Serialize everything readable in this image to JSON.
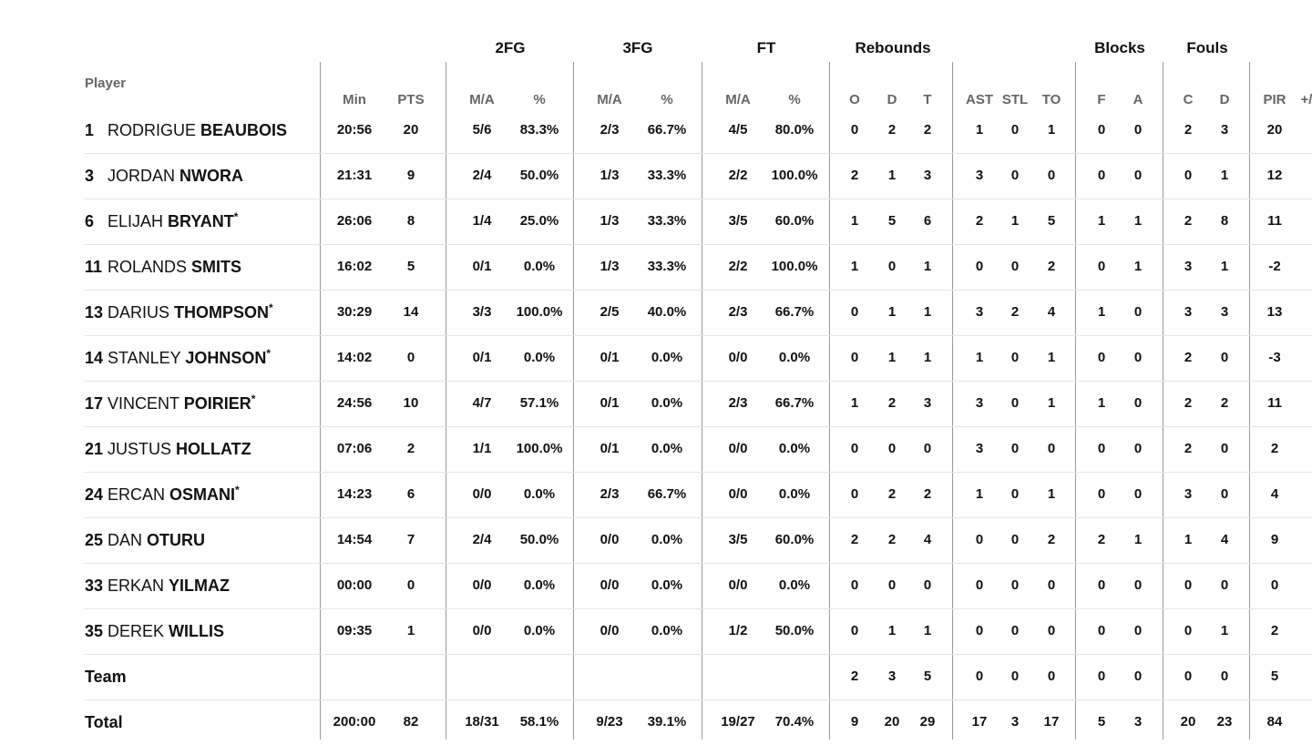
{
  "groups": {
    "fg2": "2FG",
    "fg3": "3FG",
    "ft": "FT",
    "reb": "Rebounds",
    "blk": "Blocks",
    "fls": "Fouls"
  },
  "headers": {
    "player": "Player",
    "min": "Min",
    "pts": "PTS",
    "fg2_ma": "M/A",
    "fg2_pct": "%",
    "fg3_ma": "M/A",
    "fg3_pct": "%",
    "ft_ma": "M/A",
    "ft_pct": "%",
    "reb_o": "O",
    "reb_d": "D",
    "reb_t": "T",
    "ast": "AST",
    "stl": "STL",
    "to": "TO",
    "blk_f": "F",
    "blk_a": "A",
    "fls_c": "C",
    "fls_d": "D",
    "pir": "PIR",
    "pm": "+/"
  },
  "players": [
    {
      "num": "1",
      "first": "RODRIGUE",
      "last": "BEAUBOIS",
      "star": "",
      "min": "20:56",
      "pts": "20",
      "fg2_ma": "5/6",
      "fg2_pct": "83.3%",
      "fg3_ma": "2/3",
      "fg3_pct": "66.7%",
      "ft_ma": "4/5",
      "ft_pct": "80.0%",
      "reb_o": "0",
      "reb_d": "2",
      "reb_t": "2",
      "ast": "1",
      "stl": "0",
      "to": "1",
      "blk_f": "0",
      "blk_a": "0",
      "fls_c": "2",
      "fls_d": "3",
      "pir": "20"
    },
    {
      "num": "3",
      "first": "JORDAN",
      "last": "NWORA",
      "star": "",
      "min": "21:31",
      "pts": "9",
      "fg2_ma": "2/4",
      "fg2_pct": "50.0%",
      "fg3_ma": "1/3",
      "fg3_pct": "33.3%",
      "ft_ma": "2/2",
      "ft_pct": "100.0%",
      "reb_o": "2",
      "reb_d": "1",
      "reb_t": "3",
      "ast": "3",
      "stl": "0",
      "to": "0",
      "blk_f": "0",
      "blk_a": "0",
      "fls_c": "0",
      "fls_d": "1",
      "pir": "12"
    },
    {
      "num": "6",
      "first": "ELIJAH",
      "last": "BRYANT",
      "star": "*",
      "min": "26:06",
      "pts": "8",
      "fg2_ma": "1/4",
      "fg2_pct": "25.0%",
      "fg3_ma": "1/3",
      "fg3_pct": "33.3%",
      "ft_ma": "3/5",
      "ft_pct": "60.0%",
      "reb_o": "1",
      "reb_d": "5",
      "reb_t": "6",
      "ast": "2",
      "stl": "1",
      "to": "5",
      "blk_f": "1",
      "blk_a": "1",
      "fls_c": "2",
      "fls_d": "8",
      "pir": "11"
    },
    {
      "num": "11",
      "first": "ROLANDS",
      "last": "SMITS",
      "star": "",
      "min": "16:02",
      "pts": "5",
      "fg2_ma": "0/1",
      "fg2_pct": "0.0%",
      "fg3_ma": "1/3",
      "fg3_pct": "33.3%",
      "ft_ma": "2/2",
      "ft_pct": "100.0%",
      "reb_o": "1",
      "reb_d": "0",
      "reb_t": "1",
      "ast": "0",
      "stl": "0",
      "to": "2",
      "blk_f": "0",
      "blk_a": "1",
      "fls_c": "3",
      "fls_d": "1",
      "pir": "-2"
    },
    {
      "num": "13",
      "first": "DARIUS",
      "last": "THOMPSON",
      "star": "*",
      "min": "30:29",
      "pts": "14",
      "fg2_ma": "3/3",
      "fg2_pct": "100.0%",
      "fg3_ma": "2/5",
      "fg3_pct": "40.0%",
      "ft_ma": "2/3",
      "ft_pct": "66.7%",
      "reb_o": "0",
      "reb_d": "1",
      "reb_t": "1",
      "ast": "3",
      "stl": "2",
      "to": "4",
      "blk_f": "1",
      "blk_a": "0",
      "fls_c": "3",
      "fls_d": "3",
      "pir": "13"
    },
    {
      "num": "14",
      "first": "STANLEY",
      "last": "JOHNSON",
      "star": "*",
      "min": "14:02",
      "pts": "0",
      "fg2_ma": "0/1",
      "fg2_pct": "0.0%",
      "fg3_ma": "0/1",
      "fg3_pct": "0.0%",
      "ft_ma": "0/0",
      "ft_pct": "0.0%",
      "reb_o": "0",
      "reb_d": "1",
      "reb_t": "1",
      "ast": "1",
      "stl": "0",
      "to": "1",
      "blk_f": "0",
      "blk_a": "0",
      "fls_c": "2",
      "fls_d": "0",
      "pir": "-3"
    },
    {
      "num": "17",
      "first": "VINCENT",
      "last": "POIRIER",
      "star": "*",
      "min": "24:56",
      "pts": "10",
      "fg2_ma": "4/7",
      "fg2_pct": "57.1%",
      "fg3_ma": "0/1",
      "fg3_pct": "0.0%",
      "ft_ma": "2/3",
      "ft_pct": "66.7%",
      "reb_o": "1",
      "reb_d": "2",
      "reb_t": "3",
      "ast": "3",
      "stl": "0",
      "to": "1",
      "blk_f": "1",
      "blk_a": "0",
      "fls_c": "2",
      "fls_d": "2",
      "pir": "11"
    },
    {
      "num": "21",
      "first": "JUSTUS",
      "last": "HOLLATZ",
      "star": "",
      "min": "07:06",
      "pts": "2",
      "fg2_ma": "1/1",
      "fg2_pct": "100.0%",
      "fg3_ma": "0/1",
      "fg3_pct": "0.0%",
      "ft_ma": "0/0",
      "ft_pct": "0.0%",
      "reb_o": "0",
      "reb_d": "0",
      "reb_t": "0",
      "ast": "3",
      "stl": "0",
      "to": "0",
      "blk_f": "0",
      "blk_a": "0",
      "fls_c": "2",
      "fls_d": "0",
      "pir": "2"
    },
    {
      "num": "24",
      "first": "ERCAN",
      "last": "OSMANI",
      "star": "*",
      "min": "14:23",
      "pts": "6",
      "fg2_ma": "0/0",
      "fg2_pct": "0.0%",
      "fg3_ma": "2/3",
      "fg3_pct": "66.7%",
      "ft_ma": "0/0",
      "ft_pct": "0.0%",
      "reb_o": "0",
      "reb_d": "2",
      "reb_t": "2",
      "ast": "1",
      "stl": "0",
      "to": "1",
      "blk_f": "0",
      "blk_a": "0",
      "fls_c": "3",
      "fls_d": "0",
      "pir": "4"
    },
    {
      "num": "25",
      "first": "DAN",
      "last": "OTURU",
      "star": "",
      "min": "14:54",
      "pts": "7",
      "fg2_ma": "2/4",
      "fg2_pct": "50.0%",
      "fg3_ma": "0/0",
      "fg3_pct": "0.0%",
      "ft_ma": "3/5",
      "ft_pct": "60.0%",
      "reb_o": "2",
      "reb_d": "2",
      "reb_t": "4",
      "ast": "0",
      "stl": "0",
      "to": "2",
      "blk_f": "2",
      "blk_a": "1",
      "fls_c": "1",
      "fls_d": "4",
      "pir": "9"
    },
    {
      "num": "33",
      "first": "ERKAN",
      "last": "YILMAZ",
      "star": "",
      "min": "00:00",
      "pts": "0",
      "fg2_ma": "0/0",
      "fg2_pct": "0.0%",
      "fg3_ma": "0/0",
      "fg3_pct": "0.0%",
      "ft_ma": "0/0",
      "ft_pct": "0.0%",
      "reb_o": "0",
      "reb_d": "0",
      "reb_t": "0",
      "ast": "0",
      "stl": "0",
      "to": "0",
      "blk_f": "0",
      "blk_a": "0",
      "fls_c": "0",
      "fls_d": "0",
      "pir": "0"
    },
    {
      "num": "35",
      "first": "DEREK",
      "last": "WILLIS",
      "star": "",
      "min": "09:35",
      "pts": "1",
      "fg2_ma": "0/0",
      "fg2_pct": "0.0%",
      "fg3_ma": "0/0",
      "fg3_pct": "0.0%",
      "ft_ma": "1/2",
      "ft_pct": "50.0%",
      "reb_o": "0",
      "reb_d": "1",
      "reb_t": "1",
      "ast": "0",
      "stl": "0",
      "to": "0",
      "blk_f": "0",
      "blk_a": "0",
      "fls_c": "0",
      "fls_d": "1",
      "pir": "2"
    }
  ],
  "team": {
    "label": "Team",
    "reb_o": "2",
    "reb_d": "3",
    "reb_t": "5",
    "ast": "0",
    "stl": "0",
    "to": "0",
    "blk_f": "0",
    "blk_a": "0",
    "fls_c": "0",
    "fls_d": "0",
    "pir": "5"
  },
  "total": {
    "label": "Total",
    "min": "200:00",
    "pts": "82",
    "fg2_ma": "18/31",
    "fg2_pct": "58.1%",
    "fg3_ma": "9/23",
    "fg3_pct": "39.1%",
    "ft_ma": "19/27",
    "ft_pct": "70.4%",
    "reb_o": "9",
    "reb_d": "20",
    "reb_t": "29",
    "ast": "17",
    "stl": "3",
    "to": "17",
    "blk_f": "5",
    "blk_a": "3",
    "fls_c": "20",
    "fls_d": "23",
    "pir": "84"
  }
}
